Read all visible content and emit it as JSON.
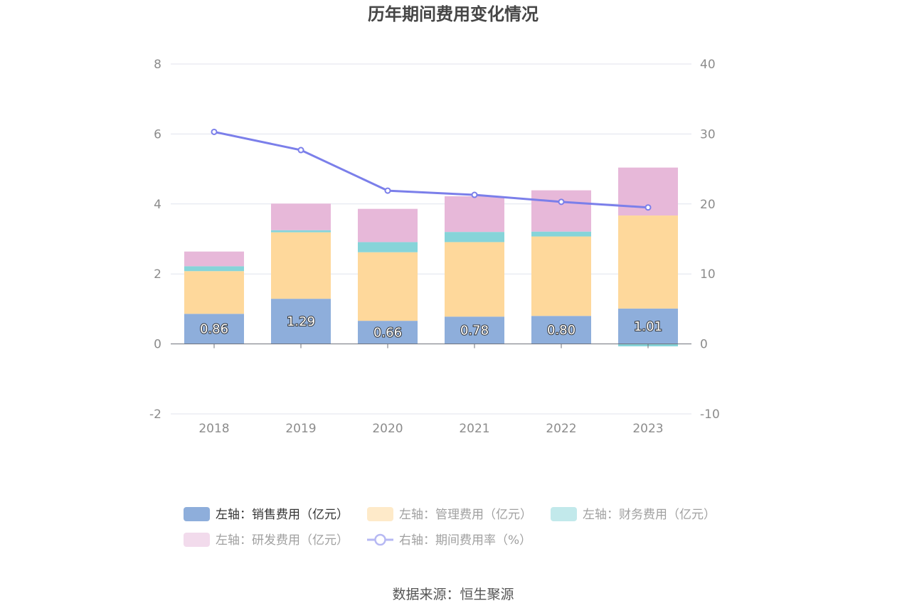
{
  "chart_data": {
    "type": "bar",
    "title": "历年期间费用变化情况",
    "categories": [
      "2018",
      "2019",
      "2020",
      "2021",
      "2022",
      "2023"
    ],
    "stacked": true,
    "series": [
      {
        "name": "左轴：销售费用（亿元）",
        "axis": "left",
        "type": "bar",
        "color": "#8eaedb",
        "values": [
          0.86,
          1.29,
          0.66,
          0.78,
          0.8,
          1.01
        ],
        "labels": [
          "0.86",
          "1.29",
          "0.66",
          "0.78",
          "0.80",
          "1.01"
        ]
      },
      {
        "name": "左轴：管理费用（亿元）",
        "axis": "left",
        "type": "bar",
        "color": "#fed89b",
        "values": [
          1.22,
          1.9,
          1.96,
          2.13,
          2.27,
          2.66
        ]
      },
      {
        "name": "左轴：财务费用（亿元）",
        "axis": "left",
        "type": "bar",
        "color": "#86d4d9",
        "values": [
          0.14,
          0.06,
          0.29,
          0.29,
          0.14,
          -0.07
        ]
      },
      {
        "name": "左轴：研发费用（亿元）",
        "axis": "left",
        "type": "bar",
        "color": "#e7b8d9",
        "values": [
          0.42,
          0.76,
          0.95,
          1.02,
          1.18,
          1.37
        ]
      },
      {
        "name": "右轴：期间费用率（%）",
        "axis": "right",
        "type": "line",
        "color": "#7b7fea",
        "values": [
          30.3,
          27.7,
          21.9,
          21.3,
          20.3,
          19.5
        ]
      }
    ],
    "y_left": {
      "min": -2,
      "max": 8,
      "ticks": [
        "-2",
        "0",
        "2",
        "4",
        "6",
        "8"
      ]
    },
    "y_right": {
      "min": -10,
      "max": 40,
      "ticks": [
        "-10",
        "0",
        "10",
        "20",
        "30",
        "40"
      ]
    },
    "grid": true,
    "legend_position": "bottom"
  },
  "legend_rows": [
    [
      {
        "label": "左轴：销售费用（亿元）",
        "kind": "bar",
        "color": "#8eaedb",
        "active": true
      },
      {
        "label": "左轴：管理费用（亿元）",
        "kind": "bar",
        "color": "#feeac9",
        "active": false
      },
      {
        "label": "左轴：财务费用（亿元）",
        "kind": "bar",
        "color": "#c2e9eb",
        "active": false
      }
    ],
    [
      {
        "label": "左轴：研发费用（亿元）",
        "kind": "bar",
        "color": "#f2dbec",
        "active": false
      },
      {
        "label": "右轴：期间费用率（%）",
        "kind": "line",
        "color": "#b6b8f3",
        "active": false
      }
    ]
  ],
  "source": "数据来源：恒生聚源"
}
